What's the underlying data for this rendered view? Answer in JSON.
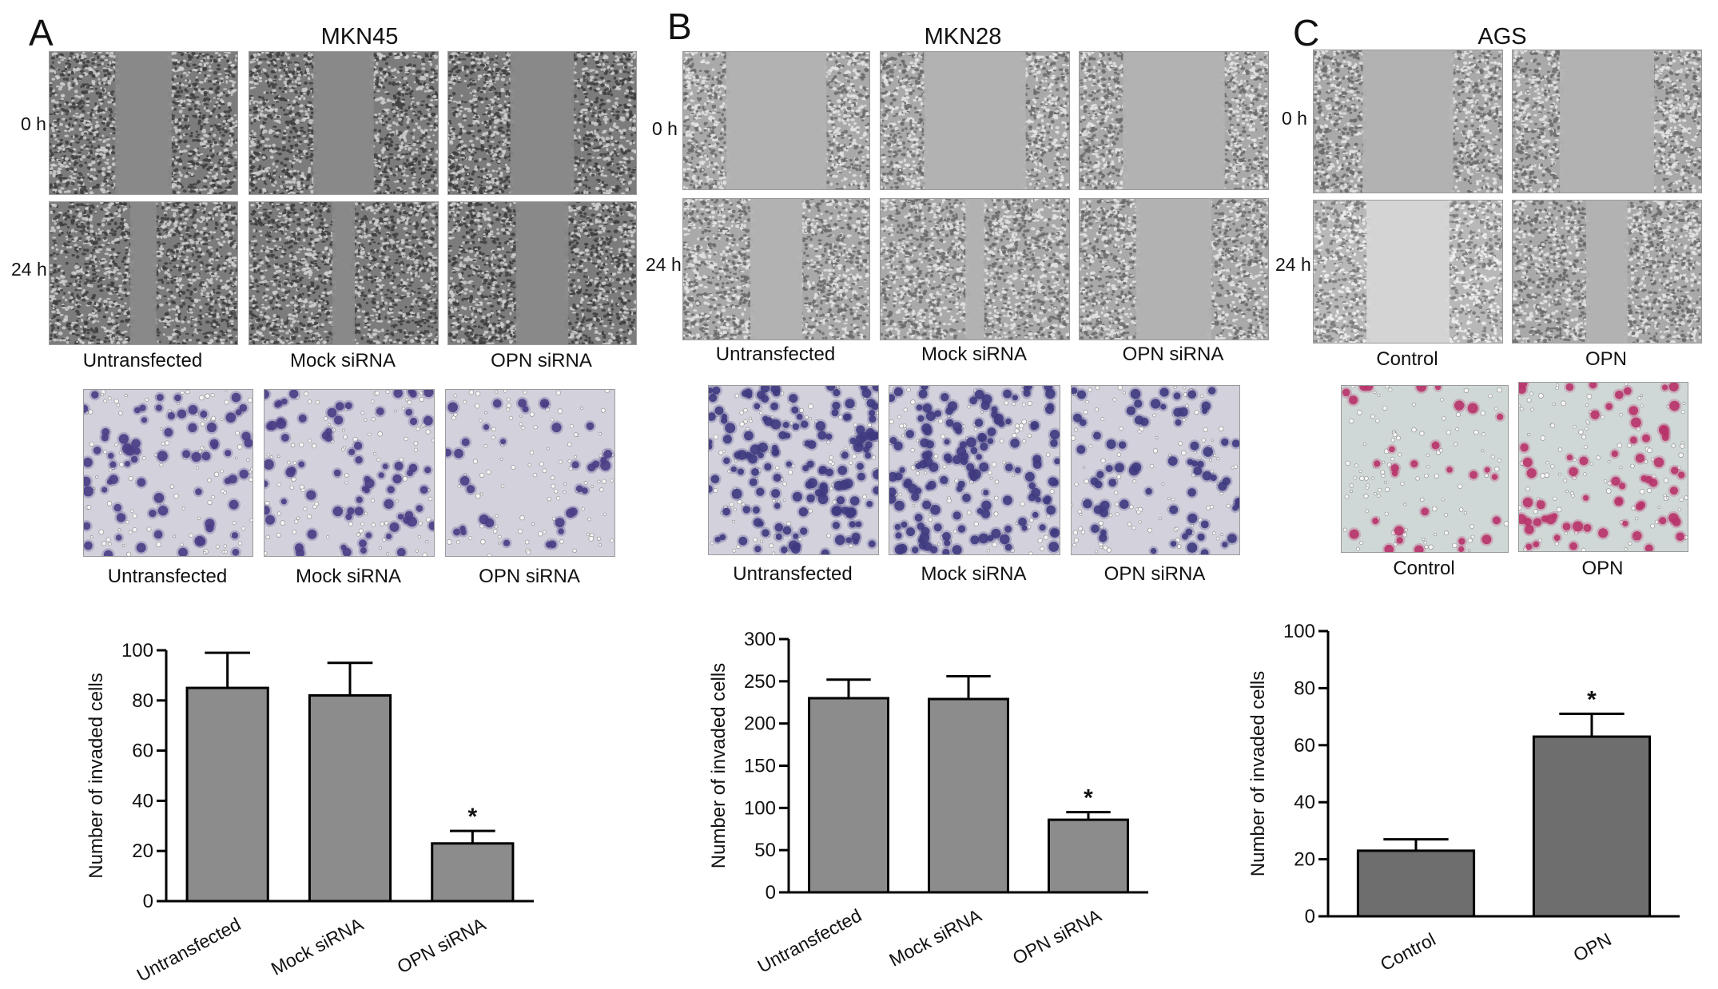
{
  "figure": {
    "panels": [
      {
        "letter": "A",
        "cell_line": "MKN45",
        "timepoints": [
          "0 h",
          "24 h"
        ],
        "scratch_captions": [
          "Untransfected",
          "Mock siRNA",
          "OPN siRNA"
        ],
        "invasion_captions": [
          "Untransfected",
          "Mock siRNA",
          "OPN siRNA"
        ],
        "invasion_stain": "crystal-violet",
        "stain_color": "#4a3d85"
      },
      {
        "letter": "B",
        "cell_line": "MKN28",
        "timepoints": [
          "0 h",
          "24 h"
        ],
        "scratch_captions": [
          "Untransfected",
          "Mock siRNA",
          "OPN siRNA"
        ],
        "invasion_captions": [
          "Untransfected",
          "Mock siRNA",
          "OPN siRNA"
        ],
        "invasion_stain": "crystal-violet",
        "stain_color": "#3f3a80"
      },
      {
        "letter": "C",
        "cell_line": "AGS",
        "timepoints": [
          "0 h",
          "24 h"
        ],
        "scratch_captions": [
          "Control",
          "OPN"
        ],
        "invasion_captions": [
          "Control",
          "OPN"
        ],
        "invasion_stain": "eosin-pink",
        "stain_color": "#b8336a"
      }
    ]
  },
  "chart_data": [
    {
      "type": "bar",
      "panel": "A",
      "categories": [
        "Untransfected",
        "Mock siRNA",
        "OPN siRNA"
      ],
      "values": [
        85,
        82,
        23
      ],
      "errors": [
        14,
        13,
        5
      ],
      "significance": [
        "",
        "",
        "*"
      ],
      "ylabel": "Number of invaded cells",
      "ylim": [
        0,
        100
      ],
      "yticks": [
        0,
        20,
        40,
        60,
        80,
        100
      ],
      "bar_color": "#8c8c8c",
      "grid": false
    },
    {
      "type": "bar",
      "panel": "B",
      "categories": [
        "Untransfected",
        "Mock siRNA",
        "OPN siRNA"
      ],
      "values": [
        230,
        229,
        86
      ],
      "errors": [
        22,
        27,
        9
      ],
      "significance": [
        "",
        "",
        "*"
      ],
      "ylabel": "Number of invaded cells",
      "ylim": [
        0,
        300
      ],
      "yticks": [
        0,
        50,
        100,
        150,
        200,
        250,
        300
      ],
      "bar_color": "#8c8c8c",
      "grid": false
    },
    {
      "type": "bar",
      "panel": "C",
      "categories": [
        "Control",
        "OPN"
      ],
      "values": [
        23,
        63
      ],
      "errors": [
        4,
        8
      ],
      "significance": [
        "",
        "*"
      ],
      "ylabel": "Number of invaded cells",
      "ylim": [
        0,
        100
      ],
      "yticks": [
        0,
        20,
        40,
        60,
        80,
        100
      ],
      "bar_color": "#6e6e6e",
      "grid": false
    }
  ]
}
